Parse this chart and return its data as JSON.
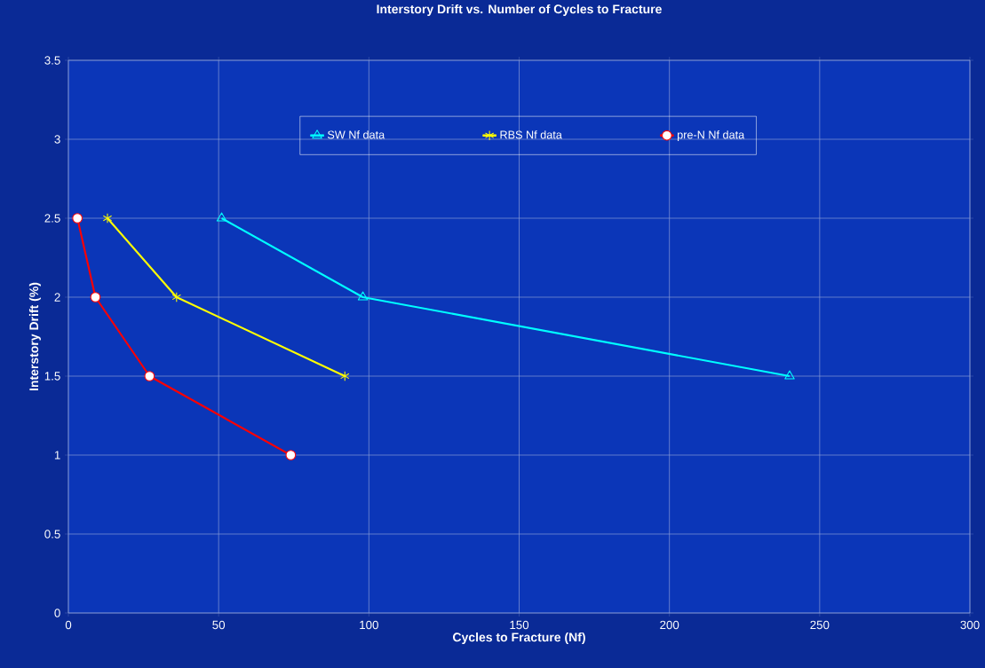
{
  "chart_data": {
    "type": "line",
    "title": "Interstory Drift vs. Number of Cycles to Fracture",
    "xlabel": "Cycles to Fracture (Nf)",
    "ylabel": "Interstory Drift (%)",
    "xlim": [
      0,
      300
    ],
    "xticks": [
      0,
      50,
      100,
      150,
      200,
      250,
      300
    ],
    "ylim": [
      0,
      3.5
    ],
    "yticks": [
      0,
      0.5,
      1,
      1.5,
      2,
      2.5,
      3,
      3.5
    ],
    "grid": true,
    "legend": "top",
    "line_style": "solid",
    "series": [
      {
        "name": "SW Nf data",
        "color": "#00ffff",
        "marker": "triangle",
        "x": [
          51,
          98,
          240
        ],
        "values": [
          2.5,
          2.0,
          1.5
        ]
      },
      {
        "name": "RBS Nf data",
        "color": "#ffff00",
        "marker": "cross",
        "x": [
          13,
          36,
          92
        ],
        "values": [
          2.5,
          2.0,
          1.5
        ]
      },
      {
        "name": "pre-N Nf data",
        "color": "#ff0000",
        "marker": "circle",
        "x": [
          3,
          9,
          27,
          74
        ],
        "values": [
          2.5,
          2.0,
          1.5,
          1.0
        ]
      }
    ]
  }
}
